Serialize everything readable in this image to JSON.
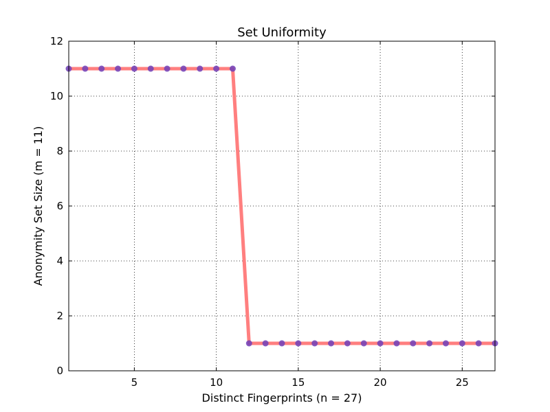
{
  "chart_data": {
    "type": "line",
    "title": "Set Uniformity",
    "xlabel": "Distinct Fingerprints (n = 27)",
    "ylabel": "Anonymity Set Size (m = 11)",
    "xlim": [
      1,
      27
    ],
    "ylim": [
      0,
      12
    ],
    "x_ticks": [
      5,
      10,
      15,
      20,
      25
    ],
    "y_ticks": [
      0,
      2,
      4,
      6,
      8,
      10,
      12
    ],
    "grid": true,
    "grid_style": "dotted",
    "x": [
      1,
      2,
      3,
      4,
      5,
      6,
      7,
      8,
      9,
      10,
      11,
      12,
      13,
      14,
      15,
      16,
      17,
      18,
      19,
      20,
      21,
      22,
      23,
      24,
      25,
      26,
      27
    ],
    "series": [
      {
        "values": [
          11,
          11,
          11,
          11,
          11,
          11,
          11,
          11,
          11,
          11,
          11,
          1,
          1,
          1,
          1,
          1,
          1,
          1,
          1,
          1,
          1,
          1,
          1,
          1,
          1,
          1,
          1
        ],
        "line_color": "#ff7f7f",
        "marker_color": "#7040b8"
      }
    ]
  }
}
